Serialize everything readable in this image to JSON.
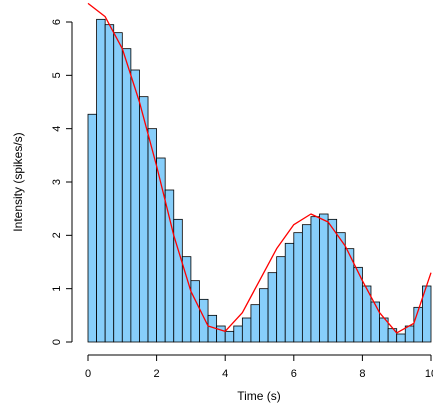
{
  "chart_data": {
    "type": "histogram",
    "xlabel": "Time (s)",
    "ylabel": "Intensity (spikes/s)",
    "bins": [
      0,
      0.25,
      0.5,
      0.75,
      1,
      1.25,
      1.5,
      1.75,
      2,
      2.25,
      2.5,
      2.75,
      3,
      3.25,
      3.5,
      3.75,
      4,
      4.25,
      4.5,
      4.75,
      5,
      5.25,
      5.5,
      5.75,
      6,
      6.25,
      6.5,
      6.75,
      7,
      7.25,
      7.5,
      7.75,
      8,
      8.25,
      8.5,
      8.75,
      9,
      9.25,
      9.5,
      9.75,
      10
    ],
    "values": [
      4.27,
      6.05,
      5.95,
      5.8,
      5.5,
      5.1,
      4.6,
      4.0,
      3.45,
      2.85,
      2.3,
      1.6,
      1.15,
      0.8,
      0.5,
      0.3,
      0.2,
      0.3,
      0.45,
      0.7,
      1.0,
      1.3,
      1.6,
      1.85,
      2.05,
      2.2,
      2.35,
      2.4,
      2.3,
      2.05,
      1.75,
      1.4,
      1.05,
      0.75,
      0.45,
      0.25,
      0.15,
      0.3,
      0.65,
      1.05
    ],
    "color": "#87cefa",
    "curve": {
      "x": [
        0,
        0.5,
        1,
        1.5,
        2,
        2.5,
        3,
        3.5,
        4,
        4.5,
        5,
        5.5,
        6,
        6.5,
        7,
        7.5,
        8,
        8.5,
        9,
        9.5,
        10
      ],
      "values": [
        6.35,
        6.1,
        5.5,
        4.5,
        3.3,
        2.0,
        0.95,
        0.3,
        0.2,
        0.55,
        1.15,
        1.75,
        2.2,
        2.4,
        2.25,
        1.8,
        1.15,
        0.55,
        0.17,
        0.35,
        1.3
      ],
      "color": "#ff0000"
    },
    "xlim": [
      0,
      10
    ],
    "xticks": [
      0,
      2,
      4,
      6,
      8,
      10
    ],
    "ylim": [
      0,
      6
    ],
    "yticks": [
      0,
      1,
      2,
      3,
      4,
      5,
      6
    ],
    "grid": false
  }
}
